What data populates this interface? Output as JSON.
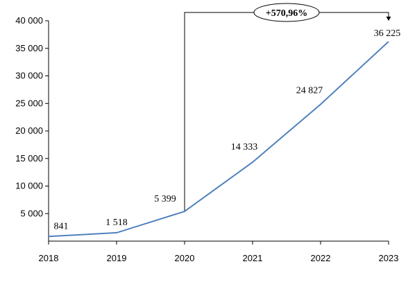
{
  "chart_data": {
    "type": "line",
    "x": [
      "2018",
      "2019",
      "2020",
      "2021",
      "2022",
      "2023"
    ],
    "series": [
      {
        "values": [
          841,
          1518,
          5399,
          14333,
          24827,
          36225
        ]
      }
    ],
    "data_labels": [
      "841",
      "1 518",
      "5 399",
      "14 333",
      "24 827",
      "36 225"
    ],
    "y_ticks": [
      {
        "value": 5000,
        "label": "5 000"
      },
      {
        "value": 10000,
        "label": "10 000"
      },
      {
        "value": 15000,
        "label": "15 000"
      },
      {
        "value": 20000,
        "label": "20 000"
      },
      {
        "value": 25000,
        "label": "25 000"
      },
      {
        "value": 30000,
        "label": "30 000"
      },
      {
        "value": 35000,
        "label": "35 000"
      },
      {
        "value": 40000,
        "label": "40 000"
      }
    ],
    "ylim": [
      0,
      40000
    ],
    "grid": false,
    "annotation": {
      "text": "+570,96%",
      "from": "2020",
      "to": "2023"
    },
    "colors": {
      "line": "#4f81bd",
      "axis": "#000000"
    }
  }
}
